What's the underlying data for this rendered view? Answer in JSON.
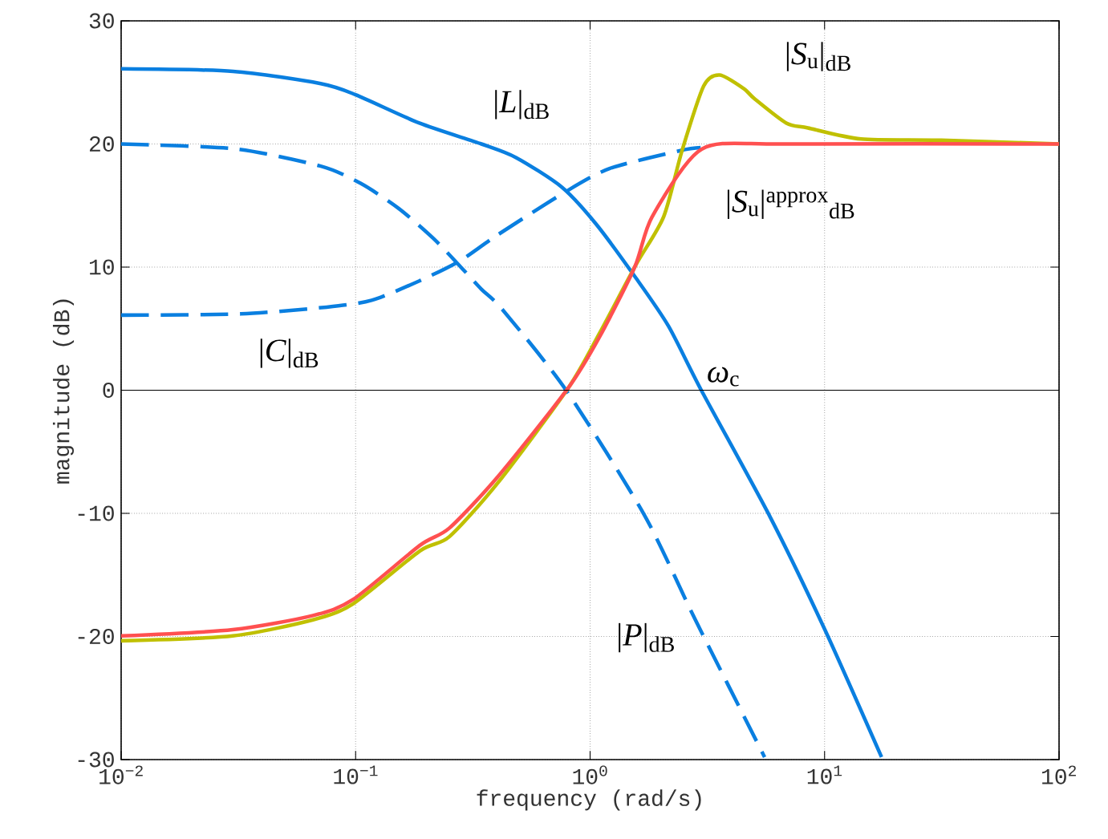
{
  "chart_data": {
    "type": "line",
    "xlabel": "frequency (rad/s)",
    "ylabel": "magnitude (dB)",
    "log": "x",
    "grid": true,
    "xlim": [
      0.01,
      100
    ],
    "ylim": [
      -30,
      30
    ],
    "xticks": [
      {
        "value": 0.01,
        "label": "10$^{−2}$"
      },
      {
        "value": 0.1,
        "label": "10$^{−1}$"
      },
      {
        "value": 1,
        "label": "10$^{0}$"
      },
      {
        "value": 10,
        "label": "10$^{1}$"
      },
      {
        "value": 100,
        "label": "10$^{2}$"
      }
    ],
    "yticks": [
      -30,
      -20,
      -10,
      0,
      10,
      20,
      30
    ],
    "ref_lines": [
      {
        "axis": "y",
        "value": 0,
        "color": "#000000",
        "line_style": "solid"
      }
    ],
    "series": [
      {
        "name": "|*L*|$_{dB}$",
        "color": "#0a7fe0",
        "line_style": "solid",
        "x": [
          0.01,
          0.03,
          0.071,
          0.1,
          0.187,
          0.344,
          0.483,
          0.757,
          1.06,
          1.57,
          2.16,
          2.98,
          5.86,
          10,
          17.5
        ],
        "values": [
          26.1,
          25.9,
          24.9,
          24.0,
          21.7,
          20.0,
          18.9,
          16.5,
          13.5,
          9.1,
          5.2,
          0,
          -10.3,
          -19.4,
          -29.8
        ]
      },
      {
        "name": "|*P*|$_{dB}$",
        "color": "#0a7fe0",
        "line_style": "dashed",
        "x": [
          0.01,
          0.0306,
          0.071,
          0.105,
          0.153,
          0.214,
          0.278,
          0.344,
          0.425,
          0.79,
          1.7,
          2.82,
          5.55
        ],
        "values": [
          20,
          19.6,
          18.2,
          16.8,
          14.75,
          12.35,
          10.1,
          8.2,
          6.5,
          0,
          -10.1,
          -18.7,
          -29.8
        ]
      },
      {
        "name": "|*C*|$_{dB}$",
        "color": "#0a7fe0",
        "line_style": "dashed",
        "x": [
          0.01,
          0.0324,
          0.0752,
          0.117,
          0.188,
          0.278,
          0.402,
          0.775,
          1.21,
          2.41,
          2.96
        ],
        "values": [
          6.1,
          6.2,
          6.75,
          7.3,
          8.9,
          10.5,
          12.6,
          16.05,
          18.0,
          19.45,
          19.7
        ]
      },
      {
        "name": "|*S*$_{u}$|$_{dB}$",
        "color": "#c0c000",
        "line_style": "solid",
        "x": [
          0.01,
          0.0299,
          0.0658,
          0.0975,
          0.188,
          0.251,
          0.405,
          0.808,
          1.095,
          1.57,
          2.06,
          2.47,
          3.05,
          3.57,
          4.52,
          5.01,
          6.87,
          8.49,
          14.3,
          31.4,
          100
        ],
        "values": [
          -20.35,
          -19.95,
          -18.65,
          -17.35,
          -13.05,
          -11.9,
          -7.5,
          0.2,
          4.6,
          10.2,
          14.1,
          19.5,
          24.7,
          25.6,
          24.5,
          23.7,
          21.7,
          21.3,
          20.4,
          20.3,
          20.0
        ]
      },
      {
        "name": "|*S*$_{u}$|$^{approx}$$_{dB}$",
        "color": "#ff5050",
        "line_style": "solid",
        "x": [
          0.01,
          0.0299,
          0.0658,
          0.0975,
          0.188,
          0.251,
          0.405,
          0.808,
          1.095,
          1.55,
          1.84,
          3.0,
          6.87,
          100
        ],
        "values": [
          -19.95,
          -19.45,
          -18.3,
          -17.0,
          -12.6,
          -11.2,
          -7.0,
          0.2,
          4.3,
          10.0,
          14.1,
          19.6,
          20.0,
          20.0
        ]
      }
    ],
    "annotations": [
      "*ω*$_{c}$"
    ]
  }
}
